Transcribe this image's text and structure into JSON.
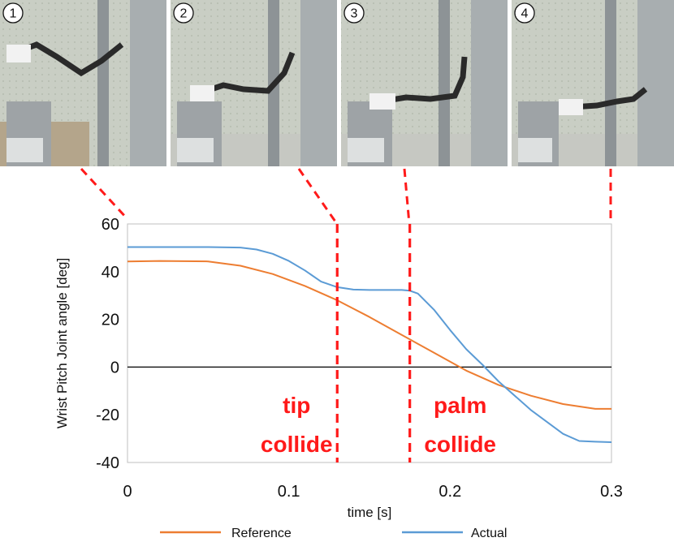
{
  "photos": [
    {
      "label": "1"
    },
    {
      "label": "2"
    },
    {
      "label": "3"
    },
    {
      "label": "4"
    }
  ],
  "colors": {
    "reference": "#ed7d31",
    "actual": "#5b9bd5",
    "annotation": "#ff1a1a"
  },
  "chart_data": {
    "type": "line",
    "title": "",
    "xlabel": "time [s]",
    "ylabel": "Wrist Pitch  Joint angle [deg]",
    "xlim": [
      0,
      0.3
    ],
    "ylim": [
      -40,
      60
    ],
    "xticks": [
      0,
      0.1,
      0.2,
      0.3
    ],
    "xtick_labels": [
      "0",
      "0.1",
      "0.2",
      "0.3"
    ],
    "yticks": [
      60,
      40,
      20,
      0,
      -20,
      -40
    ],
    "ytick_labels": [
      "60",
      "40",
      "20",
      "0",
      "-20",
      "-40"
    ],
    "series": [
      {
        "name": "Reference",
        "color": "#ed7d31",
        "x": [
          0,
          0.02,
          0.05,
          0.07,
          0.09,
          0.11,
          0.13,
          0.15,
          0.17,
          0.19,
          0.21,
          0.23,
          0.25,
          0.27,
          0.29,
          0.3
        ],
        "y": [
          44.3,
          44.5,
          44.3,
          42.5,
          39.0,
          34.0,
          28.0,
          21.0,
          13.5,
          6.0,
          -1.5,
          -7.5,
          -12.0,
          -15.5,
          -17.5,
          -17.5
        ]
      },
      {
        "name": "Actual",
        "color": "#5b9bd5",
        "x": [
          0,
          0.02,
          0.05,
          0.07,
          0.08,
          0.09,
          0.1,
          0.11,
          0.12,
          0.13,
          0.14,
          0.15,
          0.16,
          0.17,
          0.175,
          0.18,
          0.19,
          0.2,
          0.21,
          0.22,
          0.23,
          0.25,
          0.27,
          0.28,
          0.29,
          0.3
        ],
        "y": [
          50.3,
          50.3,
          50.3,
          50.1,
          49.3,
          47.5,
          44.5,
          40.5,
          35.8,
          33.5,
          32.5,
          32.3,
          32.3,
          32.3,
          32.0,
          30.8,
          24.0,
          15.5,
          7.5,
          1.0,
          -6.0,
          -18.0,
          -28.0,
          -31.0,
          -31.3,
          -31.5
        ]
      }
    ],
    "events": [
      {
        "x": 0.13,
        "label_lines": [
          "tip",
          "collide"
        ]
      },
      {
        "x": 0.175,
        "label_lines": [
          "palm",
          "collide"
        ]
      }
    ],
    "legend": {
      "placement": "bottom",
      "entries": [
        "Reference",
        "Actual"
      ]
    }
  }
}
